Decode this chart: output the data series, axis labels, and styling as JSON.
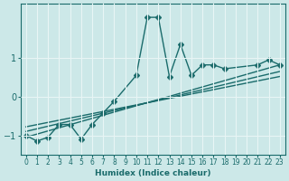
{
  "xlabel": "Humidex (Indice chaleur)",
  "ylabel": "",
  "xlim": [
    -0.5,
    23.5
  ],
  "ylim": [
    -1.5,
    2.4
  ],
  "yticks": [
    -1,
    0,
    1
  ],
  "xticks": [
    0,
    1,
    2,
    3,
    4,
    5,
    6,
    7,
    8,
    9,
    10,
    11,
    12,
    13,
    14,
    15,
    16,
    17,
    18,
    19,
    20,
    21,
    22,
    23
  ],
  "background_color": "#cce8e8",
  "line_color": "#1a6b6b",
  "grid_color": "#e8f5f5",
  "series": {
    "main_line": {
      "x": [
        0,
        1,
        2,
        3,
        4,
        5,
        6,
        7,
        8,
        10,
        11,
        12,
        13,
        14,
        15,
        16,
        17,
        18,
        21,
        22,
        23
      ],
      "y": [
        -1.0,
        -1.15,
        -1.05,
        -0.72,
        -0.72,
        -1.1,
        -0.72,
        -0.42,
        -0.12,
        0.55,
        2.05,
        2.05,
        0.52,
        1.35,
        0.55,
        0.82,
        0.82,
        0.72,
        0.82,
        0.95,
        0.82
      ]
    },
    "line2": {
      "x": [
        0,
        2,
        3,
        4,
        5,
        6,
        7,
        8,
        9,
        10,
        11,
        12,
        13,
        14,
        15,
        16,
        17,
        18,
        19,
        20,
        21,
        22,
        23
      ],
      "y": [
        -1.0,
        -1.05,
        -0.72,
        -0.72,
        -1.1,
        -0.72,
        -0.42,
        -0.12,
        -0.25,
        0.55,
        2.05,
        2.05,
        0.52,
        1.35,
        0.55,
        0.82,
        0.82,
        0.72,
        0.32,
        0.52,
        0.72,
        0.95,
        0.82
      ]
    },
    "line3": {
      "x": [
        0,
        23
      ],
      "y": [
        -1.05,
        0.82
      ]
    },
    "line4": {
      "x": [
        0,
        23
      ],
      "y": [
        -0.9,
        0.65
      ]
    },
    "line5": {
      "x": [
        0,
        23
      ],
      "y": [
        -0.78,
        0.52
      ]
    }
  },
  "marker": "D",
  "markersize": 3.0,
  "linewidth": 1.0
}
